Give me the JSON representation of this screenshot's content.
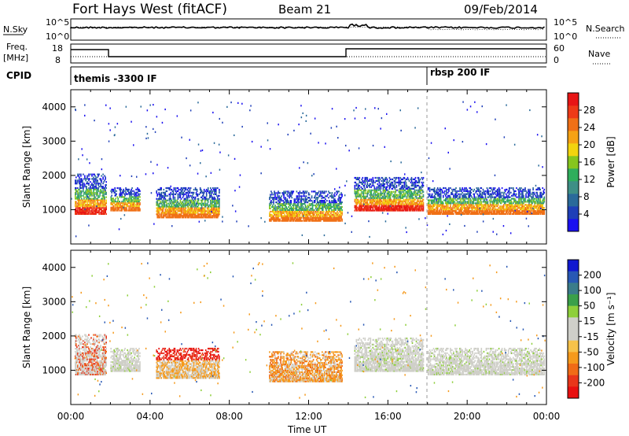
{
  "header": {
    "title": "Fort Hays West (fitACF)",
    "beam": "Beam 21",
    "date": "09/Feb/2014"
  },
  "params": {
    "nsky_label": "N.Sky",
    "nsearch_label": "N.Search",
    "freq_label_1": "Freq.",
    "freq_label_2": "[MHz]",
    "nave_label": "Nave",
    "cpid_label": "CPID",
    "noise_ticks": [
      "10^5",
      "10^0"
    ],
    "freq_ticks": [
      "18",
      "8"
    ],
    "nave_ticks": [
      "60",
      "0"
    ],
    "cpid_segments": [
      {
        "label": "themis -3300 IF",
        "start_hour": 0,
        "end_hour": 18
      },
      {
        "label": "rbsp 200 IF",
        "start_hour": 18,
        "end_hour": 24
      }
    ]
  },
  "chart_data": [
    {
      "type": "heatmap",
      "name": "power",
      "ylabel": "Slant Range [km]",
      "xlabel": "Time UT",
      "ylim": [
        0,
        4500
      ],
      "xlim_hours": [
        0,
        24
      ],
      "yticks": [
        "1000",
        "2000",
        "3000",
        "4000"
      ],
      "colorbar": {
        "label": "Power [dB]",
        "ticks": [
          "4",
          "8",
          "12",
          "16",
          "20",
          "24",
          "28"
        ],
        "colors": [
          "#1a10f0",
          "#1f3fb8",
          "#2a6a9a",
          "#3e8f86",
          "#2fae5c",
          "#86c61e",
          "#f2d40e",
          "#f6a214",
          "#f07016",
          "#ee3a17",
          "#e81515"
        ]
      },
      "echo_regions": [
        {
          "t0": 0.2,
          "t1": 1.8,
          "r_low": 900,
          "r_high": 2100,
          "level": "high"
        },
        {
          "t0": 2.0,
          "t1": 3.5,
          "r_low": 1000,
          "r_high": 1700,
          "level": "medium"
        },
        {
          "t0": 4.3,
          "t1": 7.5,
          "r_low": 800,
          "r_high": 1700,
          "level": "medium"
        },
        {
          "t0": 10.0,
          "t1": 13.7,
          "r_low": 700,
          "r_high": 1600,
          "level": "medium"
        },
        {
          "t0": 14.3,
          "t1": 17.8,
          "r_low": 1000,
          "r_high": 2000,
          "level": "high"
        },
        {
          "t0": 18.0,
          "t1": 23.9,
          "r_low": 900,
          "r_high": 1700,
          "level": "medium"
        }
      ]
    },
    {
      "type": "heatmap",
      "name": "velocity",
      "ylabel": "Slant Range [km]",
      "xlabel": "Time UT",
      "ylim": [
        0,
        4500
      ],
      "xlim_hours": [
        0,
        24
      ],
      "yticks": [
        "1000",
        "2000",
        "3000",
        "4000"
      ],
      "colorbar": {
        "label": "Velocity [m s⁻¹]",
        "ticks": [
          "200",
          "100",
          "50",
          "15",
          "-15",
          "-50",
          "-100",
          "-200"
        ],
        "colors": [
          "#1018d0",
          "#2858b4",
          "#3a7c8a",
          "#3aa04a",
          "#8ecf3a",
          "#cfcfc9",
          "#cfcfc9",
          "#f6c24a",
          "#f59a1c",
          "#f06b16",
          "#e8361a",
          "#e81010"
        ]
      },
      "echo_regions": [
        {
          "t0": 0.2,
          "t1": 1.8,
          "r_low": 900,
          "r_high": 2100,
          "level": "mixed"
        },
        {
          "t0": 2.0,
          "t1": 3.5,
          "r_low": 1000,
          "r_high": 1700,
          "level": "zero"
        },
        {
          "t0": 4.3,
          "t1": 7.5,
          "r_low": 800,
          "r_high": 1700,
          "level": "negative"
        },
        {
          "t0": 10.0,
          "t1": 13.7,
          "r_low": 700,
          "r_high": 1600,
          "level": "negative-small"
        },
        {
          "t0": 14.3,
          "t1": 17.8,
          "r_low": 1000,
          "r_high": 2000,
          "level": "zero"
        },
        {
          "t0": 18.0,
          "t1": 23.9,
          "r_low": 900,
          "r_high": 1700,
          "level": "zero"
        }
      ]
    }
  ],
  "xaxis": {
    "label": "Time UT",
    "ticks": [
      "00:00",
      "04:00",
      "08:00",
      "12:00",
      "16:00",
      "20:00",
      "00:00"
    ]
  }
}
